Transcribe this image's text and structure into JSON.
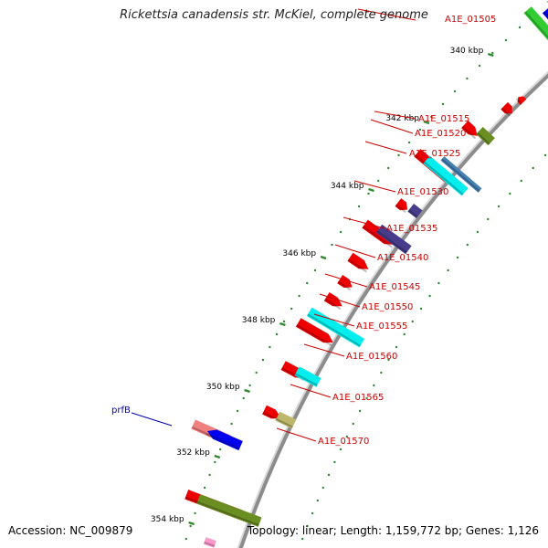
{
  "title": "Rickettsia canadensis str. McKiel, complete genome",
  "footer": {
    "accession": "Accession: NC_009879",
    "topology": "Topology: linear; Length: 1,159,772 bp; Genes: 1,126"
  },
  "colors": {
    "backbone": "#8c8c8c",
    "scale": "#2f8a2f",
    "feature_label": "#cc0000",
    "gene_label": "#0000aa"
  },
  "scale_labels": [
    "340 kbp",
    "342 kbp",
    "344 kbp",
    "346 kbp",
    "348 kbp",
    "350 kbp",
    "352 kbp",
    "354 kbp"
  ],
  "feature_labels": [
    "A1E_01505",
    "A1E_01515",
    "A1E_01520",
    "A1E_01525",
    "A1E_01530",
    "A1E_01535",
    "A1E_01540",
    "A1E_01545",
    "A1E_01550",
    "A1E_01555",
    "A1E_01560",
    "A1E_01565",
    "A1E_01570"
  ],
  "gene_labels": [
    "prfB"
  ]
}
